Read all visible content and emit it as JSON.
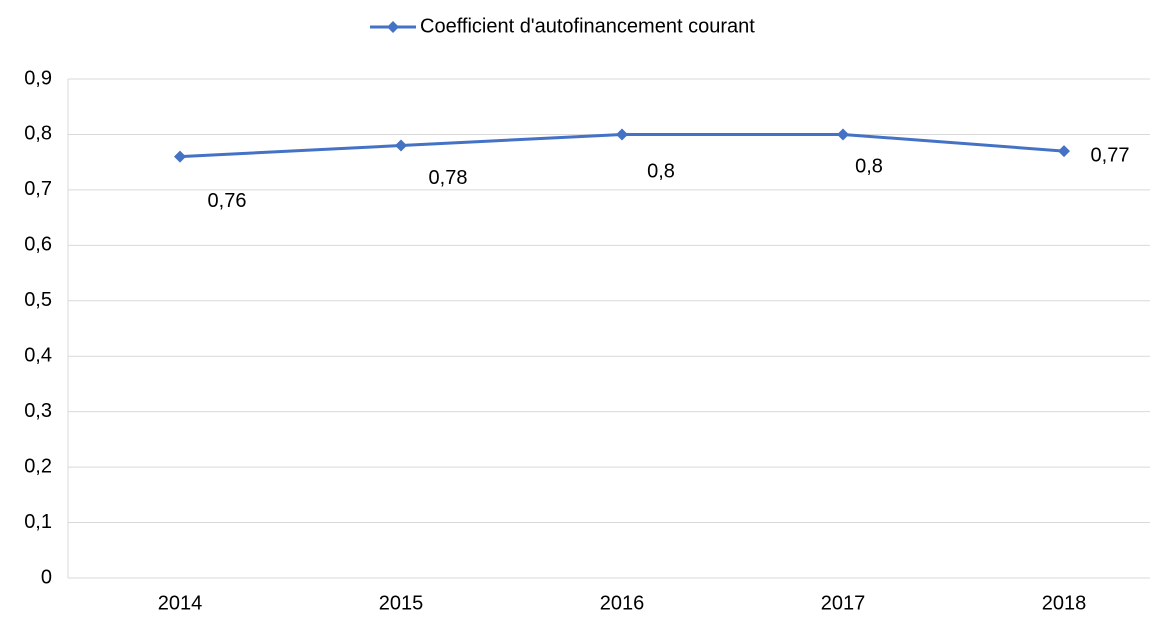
{
  "chart_data": {
    "type": "line",
    "categories": [
      "2014",
      "2015",
      "2016",
      "2017",
      "2018"
    ],
    "series": [
      {
        "name": "Coefficient d'autofinancement courant",
        "color": "#4472c4",
        "values": [
          0.76,
          0.78,
          0.8,
          0.8,
          0.77
        ],
        "value_labels": [
          "0,76",
          "0,78",
          "0,8",
          "0,8",
          "0,77"
        ]
      }
    ],
    "ylim": [
      0,
      0.9
    ],
    "yticks": [
      0,
      {
        "value": 0.1,
        "label": "0,1"
      },
      {
        "value": 0.2,
        "label": "0,2"
      },
      {
        "value": 0.3,
        "label": "0,3"
      },
      {
        "value": 0.4,
        "label": "0,4"
      },
      {
        "value": 0.5,
        "label": "0,5"
      },
      {
        "value": 0.6,
        "label": "0,6"
      },
      {
        "value": 0.7,
        "label": "0,7"
      },
      {
        "value": 0.8,
        "label": "0,8"
      },
      {
        "value": 0.9,
        "label": "0,9"
      }
    ],
    "grid": true,
    "legend": "top"
  }
}
